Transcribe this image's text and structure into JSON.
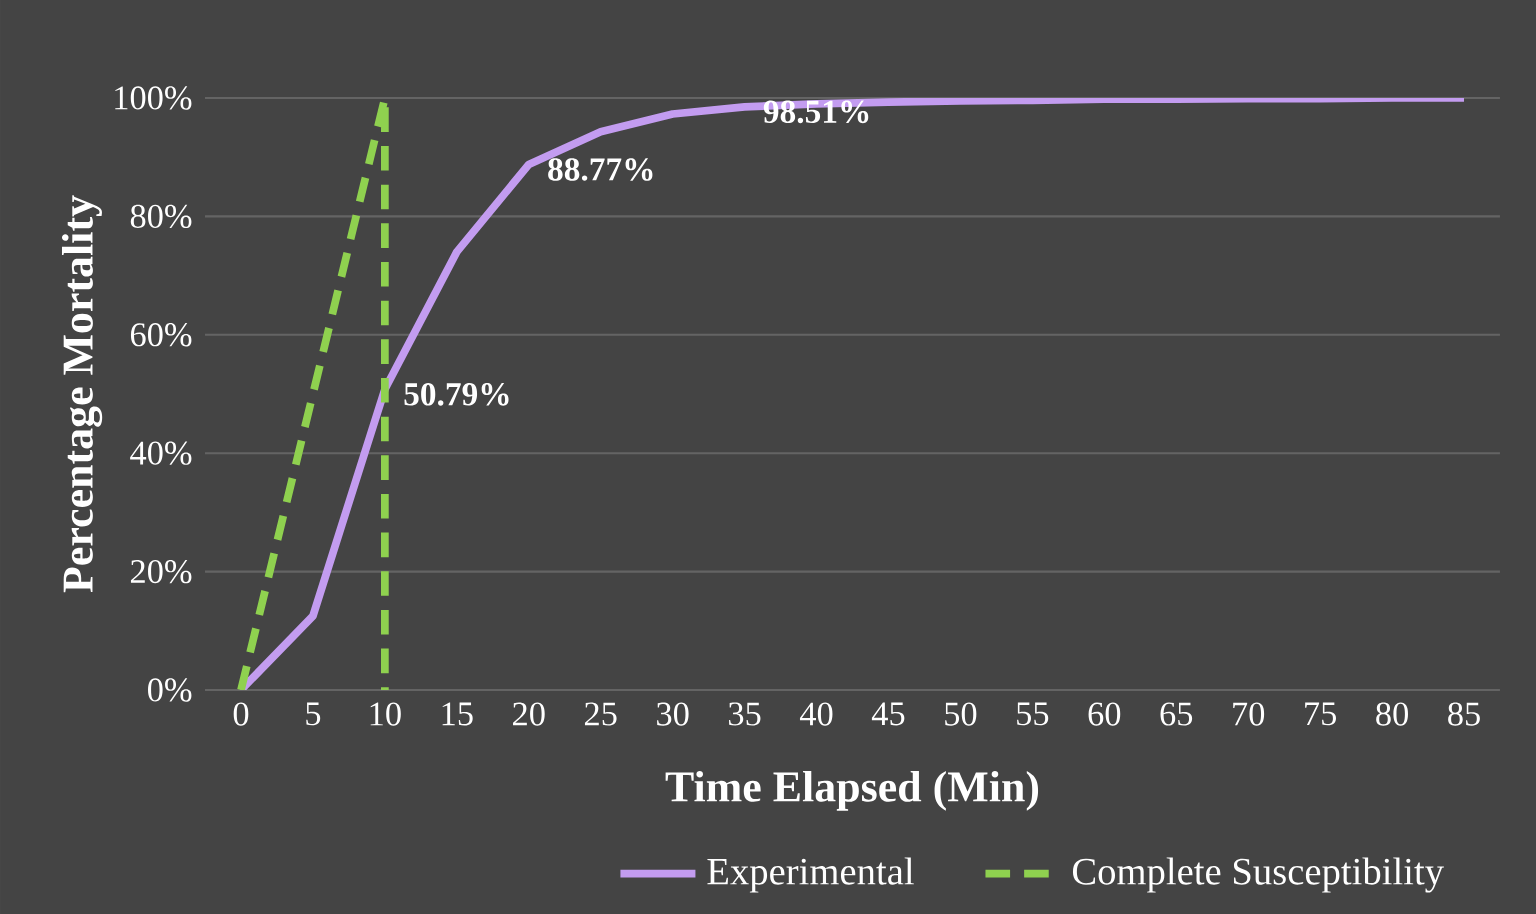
{
  "chart_data": {
    "type": "line",
    "xlabel": "Time Elapsed (Min)",
    "ylabel": "Percentage Mortality",
    "xlim": [
      -2.5,
      87.5
    ],
    "xticks": [
      0,
      5,
      10,
      15,
      20,
      25,
      30,
      35,
      40,
      45,
      50,
      55,
      60,
      65,
      70,
      75,
      80,
      85
    ],
    "ylim": [
      0,
      100
    ],
    "yticks": [
      {
        "value": 0,
        "label": "0%"
      },
      {
        "value": 20,
        "label": "20%"
      },
      {
        "value": 40,
        "label": "40%"
      },
      {
        "value": 60,
        "label": "60%"
      },
      {
        "value": 80,
        "label": "80%"
      },
      {
        "value": 100,
        "label": "100%"
      }
    ],
    "grid": "y",
    "legend": "bottom",
    "series": [
      {
        "name": "Experimental",
        "color": "#c39cf0",
        "line_style": "solid",
        "x": [
          0,
          5,
          10,
          15,
          20,
          25,
          30,
          35,
          40,
          45,
          50,
          55,
          60,
          65,
          70,
          75,
          80,
          85
        ],
        "values": [
          0,
          12.5,
          50.79,
          74,
          88.77,
          94.3,
          97.3,
          98.51,
          99.0,
          99.3,
          99.5,
          99.6,
          99.8,
          99.8,
          99.9,
          99.9,
          100,
          100
        ],
        "value_labels": [
          null,
          null,
          "50.79%",
          null,
          "88.77%",
          null,
          null,
          "98.51%",
          null,
          null,
          null,
          null,
          null,
          null,
          null,
          null,
          null,
          null
        ]
      },
      {
        "name": "Complete Susceptibility",
        "color": "#8fd14f",
        "line_style": "dashed",
        "x": [
          0,
          10,
          10
        ],
        "values": [
          0,
          100,
          0
        ]
      }
    ]
  }
}
